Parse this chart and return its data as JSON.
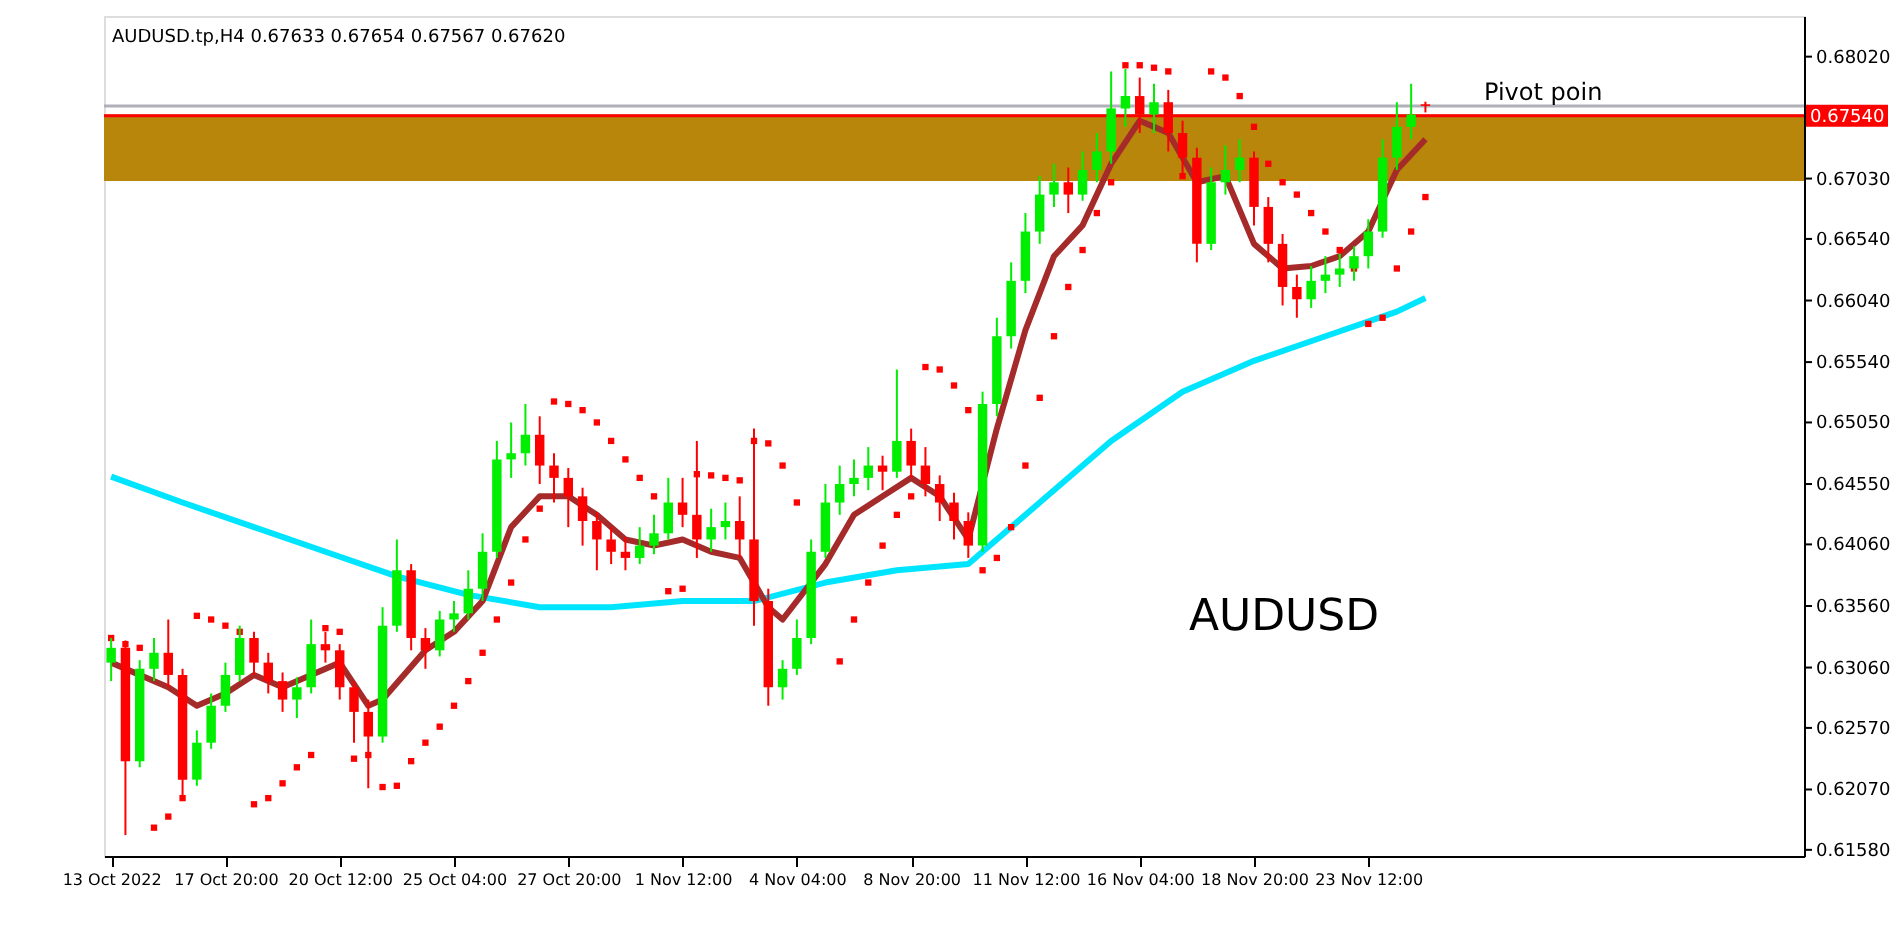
{
  "chart_data": {
    "type": "candlestick",
    "annotations": [
      "AUDUSD.tp,H4  0.67633 0.67654 0.67567 0.67620",
      "Pivot poin",
      "AUDUSD"
    ],
    "categories": [
      "13 Oct 2022",
      null,
      null,
      null,
      null,
      null,
      null,
      null,
      "17 Oct 20:00",
      null,
      null,
      null,
      null,
      null,
      null,
      null,
      "20 Oct 12:00",
      null,
      null,
      null,
      null,
      null,
      null,
      null,
      "25 Oct 04:00",
      null,
      null,
      null,
      null,
      null,
      null,
      null,
      "27 Oct 20:00",
      null,
      null,
      null,
      null,
      null,
      null,
      null,
      "1 Nov 12:00",
      null,
      null,
      null,
      null,
      null,
      null,
      null,
      "4 Nov 04:00",
      null,
      null,
      null,
      null,
      null,
      null,
      null,
      "8 Nov 20:00",
      null,
      null,
      null,
      null,
      null,
      null,
      null,
      "11 Nov 12:00",
      null,
      null,
      null,
      null,
      null,
      null,
      null,
      "16 Nov 04:00",
      null,
      null,
      null,
      null,
      null,
      null,
      null,
      "18 Nov 20:00",
      null,
      null,
      null,
      null,
      null,
      null,
      null,
      "23 Nov 12:00",
      null,
      null,
      null,
      null,
      null,
      null,
      null,
      null,
      null,
      null,
      null,
      null,
      null,
      null,
      null,
      null,
      null,
      null,
      null,
      null,
      null,
      null,
      null,
      null,
      null,
      null,
      null,
      null,
      null,
      null
    ],
    "ylim": [
      0.6153,
      0.6835
    ],
    "yticks": [
      {
        "value": 0.6158,
        "label": "0.61580"
      },
      {
        "value": 0.6207,
        "label": "0.62070"
      },
      {
        "value": 0.6257,
        "label": "0.62570"
      },
      {
        "value": 0.6306,
        "label": "0.63060"
      },
      {
        "value": 0.6356,
        "label": "0.63560"
      },
      {
        "value": 0.6406,
        "label": "0.64060"
      },
      {
        "value": 0.6455,
        "label": "0.64550"
      },
      {
        "value": 0.6505,
        "label": "0.65050"
      },
      {
        "value": 0.6554,
        "label": "0.65540"
      },
      {
        "value": 0.6604,
        "label": "0.66040"
      },
      {
        "value": 0.6654,
        "label": "0.66540"
      },
      {
        "value": 0.6703,
        "label": "0.67030"
      },
      {
        "value": 0.6802,
        "label": "0.68020"
      }
    ],
    "grid": false,
    "bands": [
      {
        "axis": "y",
        "from": 0.6701,
        "to": 0.6755,
        "color": "#b8860b"
      }
    ],
    "ref_lines": [
      {
        "axis": "y",
        "value": 0.6762,
        "color": "#b0b0b8"
      },
      {
        "axis": "y",
        "value": 0.6754,
        "label": "0.67540",
        "color": "#ff0000"
      }
    ],
    "series": [
      {
        "type": "candlestick",
        "ohlc": [
          [
            0.631,
            0.633,
            0.6295,
            0.6322
          ],
          [
            0.6322,
            0.6328,
            0.617,
            0.623
          ],
          [
            0.623,
            0.6312,
            0.6225,
            0.6305
          ],
          [
            0.6305,
            0.633,
            0.6295,
            0.6318
          ],
          [
            0.6318,
            0.6345,
            0.629,
            0.63
          ],
          [
            0.63,
            0.6305,
            0.62,
            0.6215
          ],
          [
            0.6215,
            0.6255,
            0.621,
            0.6245
          ],
          [
            0.6245,
            0.6285,
            0.624,
            0.6275
          ],
          [
            0.6275,
            0.631,
            0.627,
            0.63
          ],
          [
            0.63,
            0.634,
            0.6295,
            0.633
          ],
          [
            0.633,
            0.6335,
            0.63,
            0.631
          ],
          [
            0.631,
            0.6318,
            0.6285,
            0.6295
          ],
          [
            0.6295,
            0.6302,
            0.627,
            0.628
          ],
          [
            0.628,
            0.6298,
            0.6265,
            0.629
          ],
          [
            0.629,
            0.6345,
            0.6285,
            0.6325
          ],
          [
            0.6325,
            0.6335,
            0.631,
            0.632
          ],
          [
            0.632,
            0.6325,
            0.628,
            0.629
          ],
          [
            0.629,
            0.6295,
            0.6245,
            0.627
          ],
          [
            0.627,
            0.628,
            0.6208,
            0.625
          ],
          [
            0.625,
            0.6355,
            0.6245,
            0.634
          ],
          [
            0.634,
            0.641,
            0.6335,
            0.6385
          ],
          [
            0.6385,
            0.639,
            0.632,
            0.633
          ],
          [
            0.633,
            0.6338,
            0.6305,
            0.632
          ],
          [
            0.632,
            0.6352,
            0.6315,
            0.6345
          ],
          [
            0.6345,
            0.636,
            0.6335,
            0.635
          ],
          [
            0.635,
            0.6385,
            0.6345,
            0.637
          ],
          [
            0.637,
            0.6415,
            0.636,
            0.64
          ],
          [
            0.64,
            0.649,
            0.6395,
            0.6475
          ],
          [
            0.6475,
            0.6505,
            0.646,
            0.648
          ],
          [
            0.648,
            0.652,
            0.647,
            0.6495
          ],
          [
            0.6495,
            0.651,
            0.6455,
            0.647
          ],
          [
            0.647,
            0.648,
            0.644,
            0.646
          ],
          [
            0.646,
            0.6468,
            0.642,
            0.6445
          ],
          [
            0.6445,
            0.6452,
            0.6405,
            0.6425
          ],
          [
            0.6425,
            0.6432,
            0.6385,
            0.641
          ],
          [
            0.641,
            0.642,
            0.639,
            0.64
          ],
          [
            0.64,
            0.6412,
            0.6385,
            0.6395
          ],
          [
            0.6395,
            0.642,
            0.639,
            0.6405
          ],
          [
            0.6405,
            0.643,
            0.6398,
            0.6415
          ],
          [
            0.6415,
            0.646,
            0.641,
            0.644
          ],
          [
            0.644,
            0.646,
            0.642,
            0.643
          ],
          [
            0.643,
            0.649,
            0.6395,
            0.641
          ],
          [
            0.641,
            0.6435,
            0.64,
            0.642
          ],
          [
            0.642,
            0.644,
            0.641,
            0.6425
          ],
          [
            0.6425,
            0.6445,
            0.6395,
            0.641
          ],
          [
            0.641,
            0.65,
            0.634,
            0.636
          ],
          [
            0.636,
            0.637,
            0.6275,
            0.629
          ],
          [
            0.629,
            0.6312,
            0.628,
            0.6305
          ],
          [
            0.6305,
            0.6345,
            0.63,
            0.633
          ],
          [
            0.633,
            0.641,
            0.6325,
            0.64
          ],
          [
            0.64,
            0.6455,
            0.6395,
            0.644
          ],
          [
            0.644,
            0.647,
            0.643,
            0.6455
          ],
          [
            0.6455,
            0.6475,
            0.6445,
            0.646
          ],
          [
            0.646,
            0.6485,
            0.645,
            0.647
          ],
          [
            0.647,
            0.6478,
            0.645,
            0.6465
          ],
          [
            0.6465,
            0.6548,
            0.646,
            0.649
          ],
          [
            0.649,
            0.65,
            0.646,
            0.647
          ],
          [
            0.647,
            0.6485,
            0.6445,
            0.6455
          ],
          [
            0.6455,
            0.6462,
            0.6425,
            0.644
          ],
          [
            0.644,
            0.6448,
            0.641,
            0.6425
          ],
          [
            0.6425,
            0.6432,
            0.6395,
            0.6405
          ],
          [
            0.6405,
            0.653,
            0.64,
            0.652
          ],
          [
            0.652,
            0.659,
            0.651,
            0.6575
          ],
          [
            0.6575,
            0.6635,
            0.6565,
            0.662
          ],
          [
            0.662,
            0.6675,
            0.661,
            0.666
          ],
          [
            0.666,
            0.6705,
            0.665,
            0.669
          ],
          [
            0.669,
            0.6715,
            0.668,
            0.67
          ],
          [
            0.67,
            0.6712,
            0.6675,
            0.669
          ],
          [
            0.669,
            0.6725,
            0.6685,
            0.671
          ],
          [
            0.671,
            0.674,
            0.67,
            0.6725
          ],
          [
            0.6725,
            0.679,
            0.6715,
            0.676
          ],
          [
            0.676,
            0.6792,
            0.6745,
            0.677
          ],
          [
            0.677,
            0.6785,
            0.674,
            0.6755
          ],
          [
            0.6755,
            0.678,
            0.674,
            0.6765
          ],
          [
            0.6765,
            0.6775,
            0.6725,
            0.674
          ],
          [
            0.674,
            0.675,
            0.6705,
            0.672
          ],
          [
            0.672,
            0.6728,
            0.6635,
            0.665
          ],
          [
            0.665,
            0.6712,
            0.6645,
            0.67
          ],
          [
            0.67,
            0.673,
            0.669,
            0.671
          ],
          [
            0.671,
            0.6735,
            0.67,
            0.672
          ],
          [
            0.672,
            0.6725,
            0.6665,
            0.668
          ],
          [
            0.668,
            0.6688,
            0.6635,
            0.665
          ],
          [
            0.665,
            0.6658,
            0.66,
            0.6615
          ],
          [
            0.6615,
            0.6625,
            0.659,
            0.6605
          ],
          [
            0.6605,
            0.6632,
            0.6598,
            0.662
          ],
          [
            0.662,
            0.664,
            0.661,
            0.6625
          ],
          [
            0.6625,
            0.6642,
            0.6615,
            0.663
          ],
          [
            0.663,
            0.6648,
            0.662,
            0.664
          ],
          [
            0.664,
            0.667,
            0.663,
            0.666
          ],
          [
            0.666,
            0.6735,
            0.6655,
            0.672
          ],
          [
            0.672,
            0.6765,
            0.671,
            0.6745
          ],
          [
            0.6745,
            0.678,
            0.6735,
            0.6755
          ],
          [
            0.67633,
            0.67654,
            0.67567,
            0.6762
          ],
          null,
          null,
          null,
          null,
          null,
          null,
          null,
          null,
          null,
          null,
          null,
          null,
          null,
          null,
          null,
          null,
          null,
          null,
          null,
          null,
          null,
          null,
          null,
          null,
          null,
          null
        ]
      },
      {
        "type": "line",
        "color": "#00e5ff",
        "values": [
          0.6461,
          null,
          null,
          null,
          null,
          0.644,
          null,
          null,
          null,
          null,
          0.642,
          null,
          null,
          null,
          null,
          0.64,
          null,
          null,
          null,
          null,
          0.638,
          null,
          null,
          null,
          null,
          0.6365,
          null,
          null,
          null,
          null,
          0.6355,
          null,
          null,
          null,
          null,
          0.6355,
          null,
          null,
          null,
          null,
          0.636,
          null,
          null,
          null,
          null,
          0.636,
          null,
          null,
          null,
          null,
          0.6375,
          null,
          null,
          null,
          null,
          0.6385,
          null,
          null,
          null,
          null,
          0.639,
          null,
          null,
          null,
          null,
          0.644,
          null,
          null,
          null,
          null,
          0.649,
          null,
          null,
          null,
          null,
          0.653,
          null,
          null,
          null,
          null,
          0.6555,
          null,
          null,
          null,
          null,
          0.6575,
          null,
          null,
          null,
          null,
          0.6595,
          null,
          0.6606,
          null,
          null,
          null,
          null,
          null,
          null,
          null,
          null,
          null,
          null,
          null,
          null,
          null,
          null,
          null,
          null,
          null,
          null,
          null,
          null,
          null,
          null,
          null,
          null,
          null,
          null
        ]
      },
      {
        "type": "line",
        "color": "#a52a2a",
        "values": [
          0.631,
          null,
          null,
          null,
          0.629,
          null,
          0.6275,
          null,
          0.6285,
          null,
          0.63,
          null,
          0.629,
          null,
          0.63,
          null,
          0.631,
          null,
          0.6275,
          0.628,
          null,
          null,
          0.632,
          null,
          0.6335,
          null,
          0.636,
          null,
          0.642,
          null,
          0.6445,
          null,
          0.6445,
          null,
          0.643,
          null,
          0.641,
          null,
          0.6405,
          null,
          0.641,
          null,
          0.64,
          null,
          0.6395,
          null,
          0.6355,
          0.6345,
          null,
          null,
          0.639,
          null,
          0.643,
          null,
          0.6445,
          null,
          0.646,
          null,
          0.6445,
          null,
          0.641,
          null,
          0.65,
          null,
          0.658,
          null,
          0.664,
          null,
          0.6665,
          null,
          0.6715,
          null,
          0.675,
          null,
          0.674,
          null,
          0.67,
          null,
          0.6705,
          null,
          0.665,
          null,
          0.663,
          null,
          0.6632,
          null,
          0.664,
          null,
          0.666,
          null,
          0.671,
          null,
          0.6735,
          null,
          null,
          null,
          null,
          null,
          null,
          null,
          null,
          null,
          null,
          null,
          null,
          null,
          null,
          null,
          null,
          null,
          null,
          null,
          null,
          null,
          null,
          null,
          null,
          null,
          null
        ]
      },
      {
        "type": "scatter",
        "marker": "square",
        "color": "#ff0000",
        "values": [
          0.633,
          0.6325,
          0.6322,
          0.6176,
          0.6185,
          0.62,
          0.6348,
          0.6345,
          0.634,
          0.6335,
          0.6195,
          0.62,
          0.6212,
          0.6225,
          0.6235,
          0.6338,
          0.6335,
          0.6232,
          0.6235,
          0.6209,
          0.621,
          0.623,
          0.6245,
          0.6258,
          0.6275,
          0.6295,
          0.6318,
          0.6345,
          0.6375,
          0.641,
          0.6435,
          0.6522,
          0.652,
          0.6515,
          0.6505,
          0.649,
          0.6475,
          0.646,
          0.6445,
          0.6368,
          0.637,
          0.6463,
          0.6462,
          0.646,
          0.6458,
          0.649,
          0.6488,
          0.647,
          0.644,
          null,
          null,
          0.6311,
          0.6345,
          0.6375,
          0.6405,
          0.643,
          0.6445,
          0.655,
          0.6548,
          0.6535,
          0.6515,
          0.6385,
          0.6395,
          0.642,
          0.647,
          0.6525,
          0.6575,
          0.6615,
          0.6645,
          0.6675,
          0.67,
          0.6795,
          0.6795,
          0.6793,
          0.679,
          0.6705,
          null,
          0.679,
          0.6785,
          0.677,
          0.6745,
          0.6715,
          0.67,
          0.669,
          0.6675,
          0.666,
          0.6645,
          0.663,
          0.6585,
          0.659,
          0.663,
          0.666,
          0.6688,
          null,
          null,
          null,
          null,
          null,
          null,
          null,
          null,
          null,
          null,
          null,
          null,
          null,
          null,
          null,
          null,
          null,
          null,
          null,
          null,
          null,
          null,
          null,
          null,
          null,
          null
        ]
      }
    ]
  }
}
